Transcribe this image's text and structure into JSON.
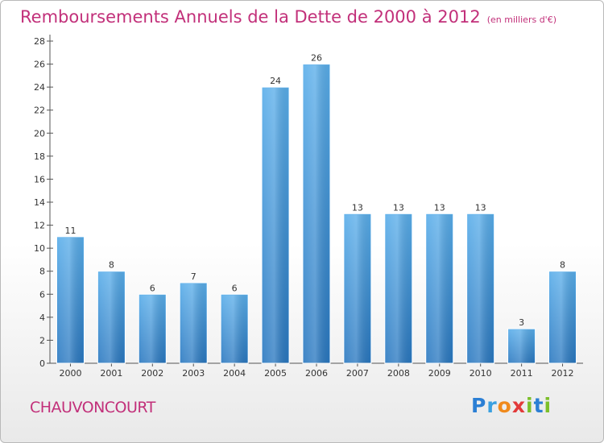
{
  "chart_data": {
    "type": "bar",
    "title": "Remboursements Annuels de la Dette de 2000 à 2012",
    "unit": "(en milliers d'€)",
    "categories": [
      "2000",
      "2001",
      "2002",
      "2003",
      "2004",
      "2005",
      "2006",
      "2007",
      "2008",
      "2009",
      "2010",
      "2011",
      "2012"
    ],
    "values": [
      11,
      8,
      6,
      7,
      6,
      24,
      26,
      13,
      13,
      13,
      13,
      3,
      8
    ],
    "ylim": [
      0,
      28
    ],
    "yticks": [
      0,
      2,
      4,
      6,
      8,
      10,
      12,
      14,
      16,
      18,
      20,
      22,
      24,
      26,
      28
    ],
    "grid": false,
    "bar_color": "#3d8fd6"
  },
  "commune": "CHAUVONCOURT",
  "logo": {
    "text": "Proxiti",
    "letters": [
      "P",
      "r",
      "o",
      "x",
      "i",
      "t",
      "i"
    ]
  }
}
